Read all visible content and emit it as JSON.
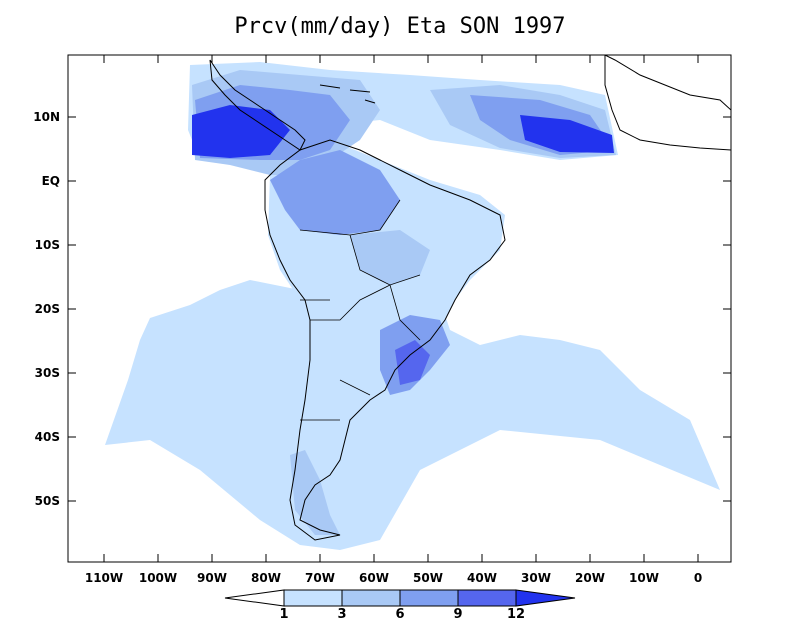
{
  "title": "Prcv(mm/day) Eta SON 1997",
  "axes": {
    "x_ticks": [
      "110W",
      "100W",
      "90W",
      "80W",
      "70W",
      "60W",
      "50W",
      "40W",
      "30W",
      "20W",
      "10W",
      "0"
    ],
    "y_ticks": [
      "10N",
      "EQ",
      "10S",
      "20S",
      "30S",
      "40S",
      "50S"
    ]
  },
  "colorbar": {
    "levels": [
      "1",
      "3",
      "6",
      "9",
      "12"
    ],
    "colors": [
      "#ffffff",
      "#c6e2ff",
      "#a9c9f5",
      "#7f9ff0",
      "#5566ee",
      "#2233ee"
    ]
  },
  "map": {
    "region": "South America",
    "variable": "Prcv",
    "units": "mm/day",
    "model": "Eta",
    "season": "SON",
    "year": "1997"
  }
}
